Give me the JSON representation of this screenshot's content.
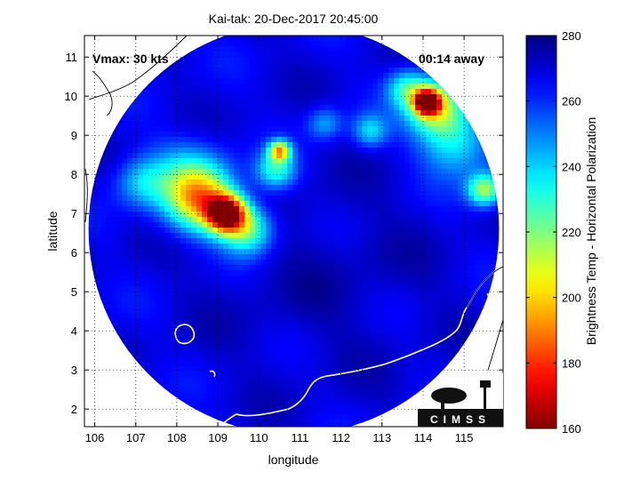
{
  "chart_data": {
    "type": "heatmap",
    "title": "Kai-tak: 20-Dec-2017 20:45:00",
    "xlabel": "longitude",
    "ylabel": "latitude",
    "xlim": [
      105.75,
      115.95
    ],
    "ylim": [
      1.55,
      11.55
    ],
    "x_ticks": [
      106,
      107,
      108,
      109,
      110,
      111,
      112,
      113,
      114,
      115
    ],
    "y_ticks": [
      2,
      3,
      4,
      5,
      6,
      7,
      8,
      9,
      10,
      11
    ],
    "grid": true,
    "annotations": {
      "vmax": "Vmax: 30 kts",
      "time_away": "00:14 away"
    },
    "colorbar": {
      "label": "Brightness Temp - Horizontal Polarization",
      "range": [
        160,
        280
      ],
      "ticks": [
        160,
        180,
        200,
        220,
        240,
        260,
        280
      ],
      "colormap": "jet"
    },
    "swath": {
      "center_lon": 110.85,
      "center_lat": 6.6,
      "radius_deg": 5.0,
      "background_value": 268
    },
    "features": [
      {
        "lon": 109.2,
        "lat": 7.0,
        "sigma": 0.32,
        "min_value": 168
      },
      {
        "lon": 108.6,
        "lat": 7.3,
        "sigma": 0.55,
        "min_value": 215
      },
      {
        "lon": 109.7,
        "lat": 6.6,
        "sigma": 0.45,
        "min_value": 220
      },
      {
        "lon": 108.3,
        "lat": 7.8,
        "sigma": 0.7,
        "min_value": 235
      },
      {
        "lon": 110.4,
        "lat": 8.1,
        "sigma": 0.35,
        "min_value": 230
      },
      {
        "lon": 110.5,
        "lat": 8.6,
        "sigma": 0.18,
        "min_value": 205
      },
      {
        "lon": 114.1,
        "lat": 9.85,
        "sigma": 0.22,
        "min_value": 168
      },
      {
        "lon": 114.3,
        "lat": 9.7,
        "sigma": 0.5,
        "min_value": 215
      },
      {
        "lon": 113.6,
        "lat": 10.2,
        "sigma": 0.35,
        "min_value": 235
      },
      {
        "lon": 114.8,
        "lat": 8.8,
        "sigma": 0.6,
        "min_value": 235
      },
      {
        "lon": 115.5,
        "lat": 7.6,
        "sigma": 0.3,
        "min_value": 215
      },
      {
        "lon": 112.7,
        "lat": 9.1,
        "sigma": 0.3,
        "min_value": 240
      },
      {
        "lon": 111.6,
        "lat": 9.3,
        "sigma": 0.3,
        "min_value": 245
      },
      {
        "lon": 107.1,
        "lat": 7.8,
        "sigma": 0.45,
        "min_value": 245
      }
    ]
  },
  "logo": {
    "text": "CIMSS"
  }
}
